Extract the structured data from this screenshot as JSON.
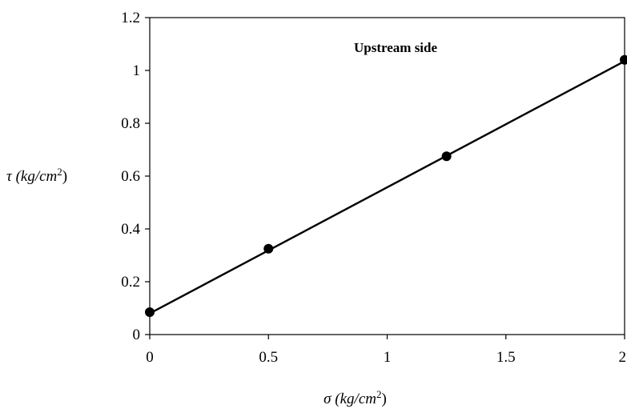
{
  "chart_data": {
    "type": "scatter",
    "title": "",
    "annotation": "Upstream side",
    "xlabel": {
      "symbol": "σ",
      "unit_prefix": " (kg/cm",
      "unit_sup": "2",
      "unit_suffix": ")"
    },
    "ylabel": {
      "symbol": "τ",
      "unit_prefix": " (kg/cm",
      "unit_sup": "2",
      "unit_suffix": ")"
    },
    "xlim": [
      0,
      2
    ],
    "ylim": [
      0,
      1.2
    ],
    "x_ticks": [
      0,
      0.5,
      1,
      1.5,
      2
    ],
    "x_tick_labels": [
      "0",
      "0.5",
      "1",
      "1.5",
      "2"
    ],
    "y_ticks": [
      0,
      0.2,
      0.4,
      0.6,
      0.8,
      1,
      1.2
    ],
    "y_tick_labels": [
      "0",
      "0.2",
      "0.4",
      "0.6",
      "0.8",
      "1",
      "1.2"
    ],
    "grid": false,
    "series": [
      {
        "points": [
          {
            "x": 0,
            "y": 0.085
          },
          {
            "x": 0.5,
            "y": 0.325
          },
          {
            "x": 1.25,
            "y": 0.675
          },
          {
            "x": 2,
            "y": 1.04
          }
        ],
        "color": "#000000",
        "marker": "circle"
      }
    ],
    "fit_line": {
      "x": [
        0,
        2
      ],
      "y": [
        0.08,
        1.035
      ],
      "color": "#000000"
    }
  }
}
